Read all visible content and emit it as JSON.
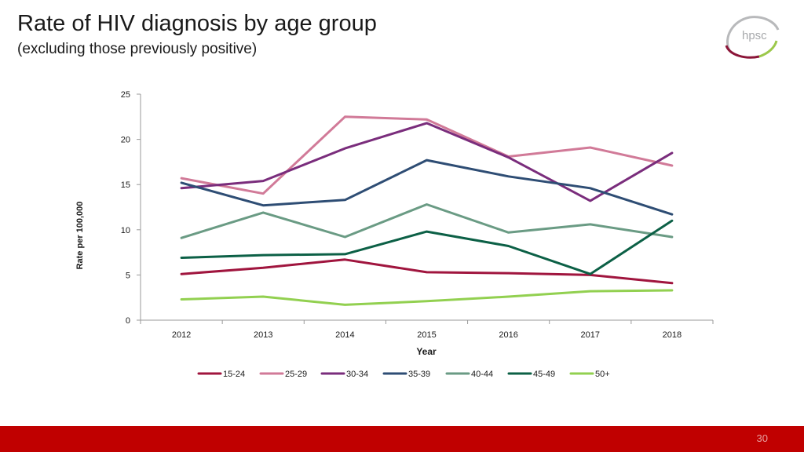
{
  "header": {
    "title": "Rate of HIV diagnosis by age group",
    "subtitle": "(excluding those previously positive)"
  },
  "logo": {
    "text": "hpsc",
    "colors": [
      "#a7a9ac",
      "#8b1538",
      "#9cc84b"
    ]
  },
  "footer": {
    "page_number": "30",
    "bar_color": "#c00000"
  },
  "chart_data": {
    "type": "line",
    "xlabel": "Year",
    "ylabel": "Rate per 100,000",
    "categories": [
      "2012",
      "2013",
      "2014",
      "2015",
      "2016",
      "2017",
      "2018"
    ],
    "ylim": [
      0,
      25
    ],
    "yticks": [
      0,
      5,
      10,
      15,
      20,
      25
    ],
    "grid": false,
    "legend_position": "bottom",
    "series": [
      {
        "name": "15-24",
        "color": "#a0153e",
        "values": [
          5.1,
          5.8,
          6.7,
          5.3,
          5.2,
          5.0,
          4.1
        ]
      },
      {
        "name": "25-29",
        "color": "#d17a98",
        "values": [
          15.7,
          14.0,
          22.5,
          22.2,
          18.1,
          19.1,
          17.1
        ]
      },
      {
        "name": "30-34",
        "color": "#7a2d7c",
        "values": [
          14.6,
          15.4,
          19.0,
          21.8,
          18.0,
          13.2,
          18.5
        ]
      },
      {
        "name": "35-39",
        "color": "#2e4d74",
        "values": [
          15.2,
          12.7,
          13.3,
          17.7,
          15.9,
          14.6,
          11.7
        ]
      },
      {
        "name": "40-44",
        "color": "#6a9b84",
        "values": [
          9.1,
          11.9,
          9.2,
          12.8,
          9.7,
          10.6,
          9.2
        ]
      },
      {
        "name": "45-49",
        "color": "#0c6046",
        "values": [
          6.9,
          7.2,
          7.3,
          9.8,
          8.2,
          5.1,
          11.0
        ]
      },
      {
        "name": "50+",
        "color": "#92d050",
        "values": [
          2.3,
          2.6,
          1.7,
          2.1,
          2.6,
          3.2,
          3.3
        ]
      }
    ]
  }
}
